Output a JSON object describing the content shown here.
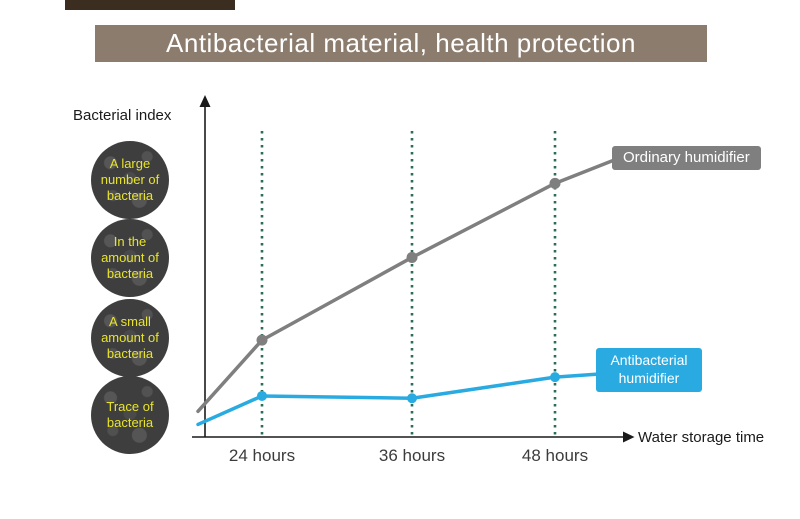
{
  "top_bar": {
    "color": "#3b2d1f"
  },
  "banner": {
    "title": "Antibacterial material, health protection",
    "bg": "#8c7c6d",
    "text_color": "#ffffff"
  },
  "axes": {
    "y_label": "Bacterial index",
    "x_label": "Water storage time",
    "color": "#1a1a1a"
  },
  "y_badges": [
    {
      "label": "A large number of bacteria"
    },
    {
      "label": "In the amount of bacteria"
    },
    {
      "label": "A small amount of bacteria"
    },
    {
      "label": "Trace of bacteria"
    }
  ],
  "badge_style": {
    "bg": "#3e3e3e",
    "text_color": "#e8e42c"
  },
  "gridlines": {
    "color": "#2a6e58",
    "style": "dotted-vertical"
  },
  "chart_data": {
    "type": "line",
    "title": "Antibacterial material, health protection",
    "xlabel": "Water storage time",
    "ylabel": "Bacterial index",
    "x_ticks": [
      "24 hours",
      "36 hours",
      "48 hours"
    ],
    "y_qualitative_levels": [
      "Trace of bacteria",
      "A small amount of bacteria",
      "In the amount of bacteria",
      "A large number of bacteria"
    ],
    "ylim": [
      0,
      5.5
    ],
    "grid": "vertical dotted lines at each x tick",
    "legend_position": "labels at line ends (right side)",
    "series": [
      {
        "name": "Ordinary humidifier",
        "color": "#7f7f7f",
        "start_value": 0.45,
        "values": [
          1.7,
          3.15,
          4.45
        ],
        "end_value": 4.85,
        "trend": "rises steeply from trace level to a large number of bacteria"
      },
      {
        "name": "Antibacterial humidifier",
        "color": "#29abe2",
        "start_value": 0.22,
        "values": [
          0.72,
          0.68,
          1.05
        ],
        "end_value": 1.1,
        "trend": "stays near trace-of-bacteria level"
      }
    ]
  }
}
